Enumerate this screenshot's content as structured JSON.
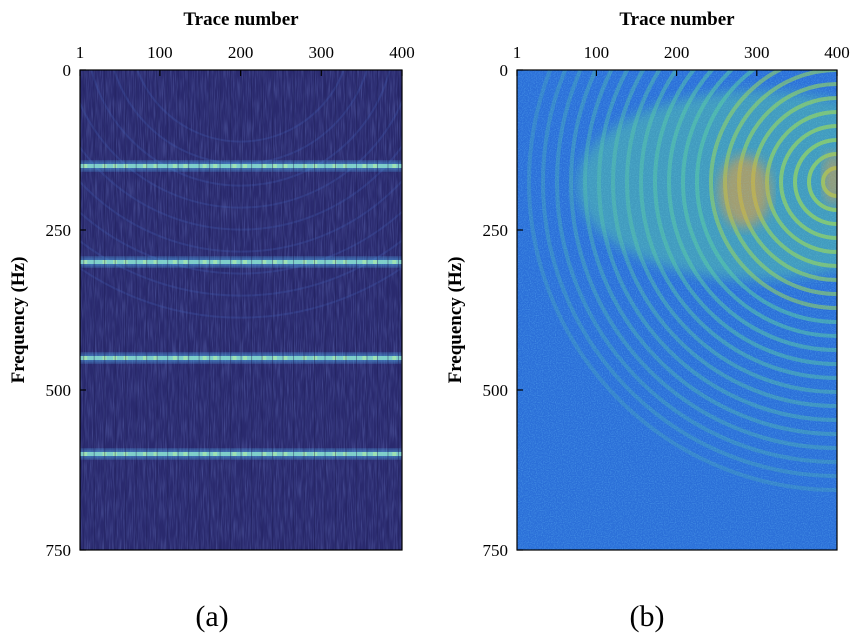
{
  "figure": {
    "panel_labels": [
      "(a)",
      "(b)"
    ]
  },
  "chart_data": [
    {
      "type": "heatmap",
      "panel": "(a)",
      "xlabel": "Trace number",
      "ylabel": "Frequency (Hz)",
      "x_axis_position": "top",
      "xlim": [
        1,
        400
      ],
      "ylim": [
        0,
        750
      ],
      "y_inverted": true,
      "xticks": [
        1,
        100,
        200,
        300,
        400
      ],
      "yticks": [
        0,
        250,
        500,
        750
      ],
      "grid": false,
      "colormap": "parula",
      "colors": {
        "background": "#2a2a6e",
        "band": "#4fa8e8",
        "band_core": "#8ee6d0"
      },
      "features": {
        "horizontal_bands_hz": [
          150,
          300,
          450,
          600
        ],
        "arc_pattern": "faint concentric arcs centred near trace 200, 0-300 Hz"
      }
    },
    {
      "type": "heatmap",
      "panel": "(b)",
      "xlabel": "Trace number",
      "ylabel": "Frequency (Hz)",
      "x_axis_position": "top",
      "xlim": [
        1,
        400
      ],
      "ylim": [
        0,
        750
      ],
      "y_inverted": true,
      "xticks": [
        1,
        100,
        200,
        300,
        400
      ],
      "yticks": [
        0,
        250,
        500,
        750
      ],
      "grid": false,
      "colormap": "parula",
      "colors": {
        "background": "#2b6fd8",
        "arcs": "#5cd0a0",
        "hot": "#f2a030"
      },
      "features": {
        "arc_pattern": "concentric arcs centred near trace 400, 175 Hz, strongest around traces 250-400 and 100-300 Hz",
        "noise": "speckled background noise over entire panel"
      }
    }
  ]
}
